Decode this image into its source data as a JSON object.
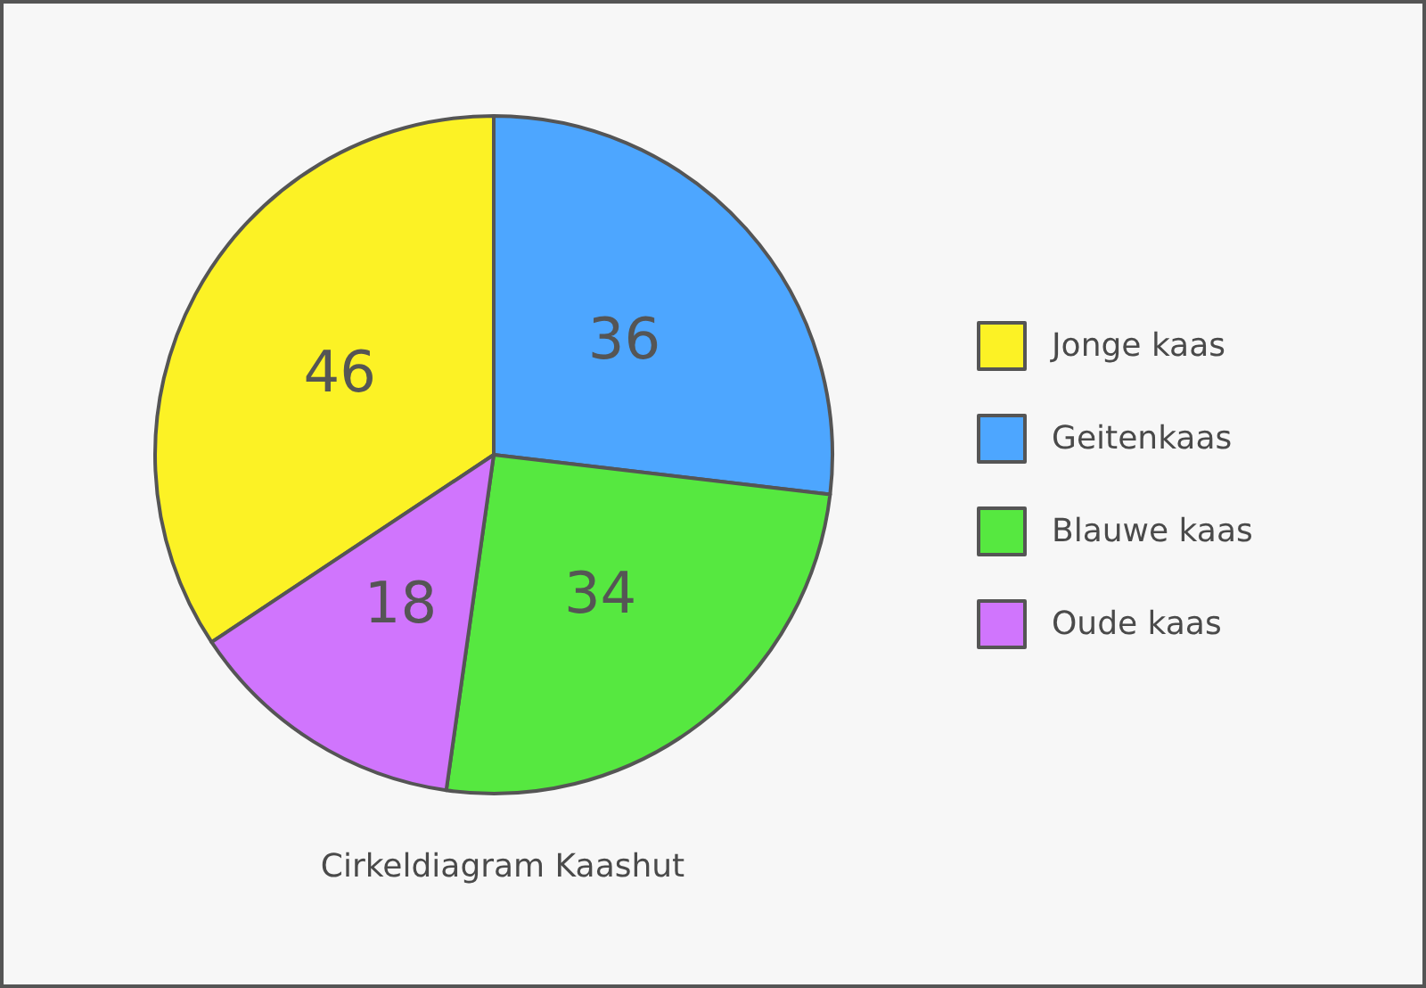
{
  "chart_data": {
    "type": "pie",
    "title": "Cirkeldiagram Kaashut",
    "categories": [
      "Jonge kaas",
      "Geitenkaas",
      "Blauwe kaas",
      "Oude kaas"
    ],
    "values": [
      46,
      36,
      34,
      18
    ],
    "colors": [
      "#fcf225",
      "#4da6ff",
      "#56e840",
      "#d075fd"
    ],
    "data_labels": true,
    "legend": "right"
  }
}
